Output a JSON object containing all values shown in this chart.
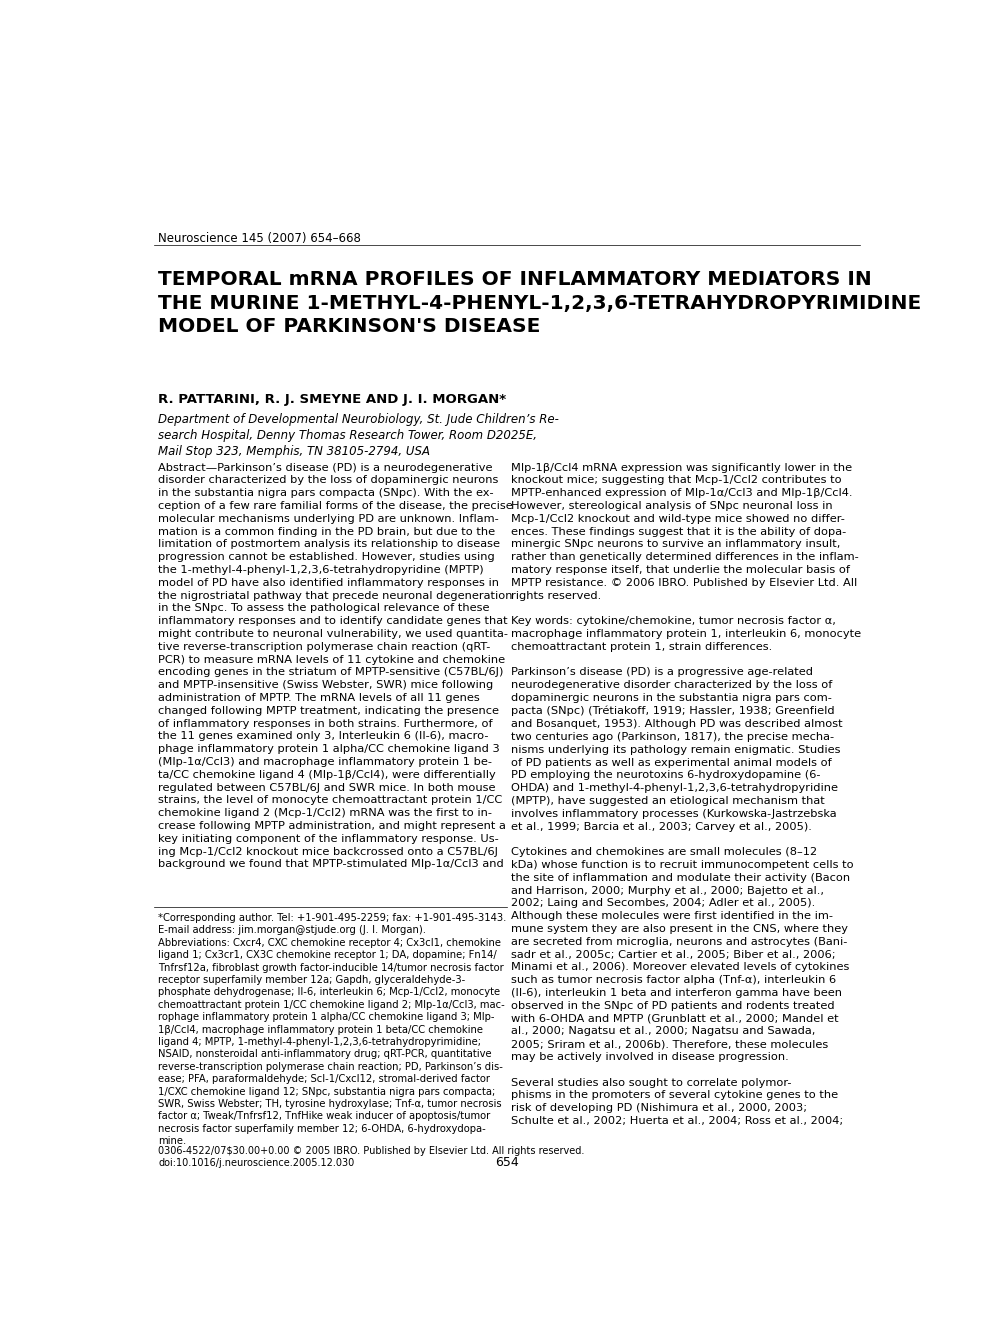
{
  "background_color": "#ffffff",
  "journal_ref": "Neuroscience 145 (2007) 654–668",
  "journal_ref_fontsize": 8.5,
  "title": "TEMPORAL mRNA PROFILES OF INFLAMMATORY MEDIATORS IN\nTHE MURINE 1-METHYL-4-PHENYL-1,2,3,6-TETRAHYDROPYRIMIDINE\nMODEL OF PARKINSON'S DISEASE",
  "title_fontsize": 14.5,
  "authors": "R. PATTARINI, R. J. SMEYNE AND J. I. MORGAN*",
  "authors_fontsize": 9.5,
  "affiliation": "Department of Developmental Neurobiology, St. Jude Children’s Re-\nsearch Hospital, Denny Thomas Research Tower, Room D2025E,\nMail Stop 323, Memphis, TN 38105-2794, USA",
  "affiliation_fontsize": 8.5,
  "abstract_text_left": "Abstract—Parkinson’s disease (PD) is a neurodegenerative\ndisorder characterized by the loss of dopaminergic neurons\nin the substantia nigra pars compacta (SNpc). With the ex-\nception of a few rare familial forms of the disease, the precise\nmolecular mechanisms underlying PD are unknown. Inflam-\nmation is a common finding in the PD brain, but due to the\nlimitation of postmortem analysis its relationship to disease\nprogression cannot be established. However, studies using\nthe 1-methyl-4-phenyl-1,2,3,6-tetrahydropyridine (MPTP)\nmodel of PD have also identified inflammatory responses in\nthe nigrostriatal pathway that precede neuronal degeneration\nin the SNpc. To assess the pathological relevance of these\ninflammatory responses and to identify candidate genes that\nmight contribute to neuronal vulnerability, we used quantita-\ntive reverse-transcription polymerase chain reaction (qRT-\nPCR) to measure mRNA levels of 11 cytokine and chemokine\nencoding genes in the striatum of MPTP-sensitive (C57BL/6J)\nand MPTP-insensitive (Swiss Webster, SWR) mice following\nadministration of MPTP. The mRNA levels of all 11 genes\nchanged following MPTP treatment, indicating the presence\nof inflammatory responses in both strains. Furthermore, of\nthe 11 genes examined only 3, Interleukin 6 (Il-6), macro-\nphage inflammatory protein 1 alpha/CC chemokine ligand 3\n(Mlp-1α/Ccl3) and macrophage inflammatory protein 1 be-\nta/CC chemokine ligand 4 (Mlp-1β/Ccl4), were differentially\nregulated between C57BL/6J and SWR mice. In both mouse\nstrains, the level of monocyte chemoattractant protein 1/CC\nchemokine ligand 2 (Mcp-1/Ccl2) mRNA was the first to in-\ncrease following MPTP administration, and might represent a\nkey initiating component of the inflammatory response. Us-\ning Mcp-1/Ccl2 knockout mice backcrossed onto a C57BL/6J\nbackground we found that MPTP-stimulated Mlp-1α/Ccl3 and",
  "abstract_text_right": "Mlp-1β/Ccl4 mRNA expression was significantly lower in the\nknockout mice; suggesting that Mcp-1/Ccl2 contributes to\nMPTP-enhanced expression of Mlp-1α/Ccl3 and Mlp-1β/Ccl4.\nHowever, stereological analysis of SNpc neuronal loss in\nMcp-1/Ccl2 knockout and wild-type mice showed no differ-\nences. These findings suggest that it is the ability of dopa-\nminergic SNpc neurons to survive an inflammatory insult,\nrather than genetically determined differences in the inflam-\nmatory response itself, that underlie the molecular basis of\nMPTP resistance. © 2006 IBRO. Published by Elsevier Ltd. All\nrights reserved.\n\nKey words: cytokine/chemokine, tumor necrosis factor α,\nmacrophage inflammatory protein 1, interleukin 6, monocyte\nchemoattractant protein 1, strain differences.\n\nParkinson’s disease (PD) is a progressive age-related\nneurodegenerative disorder characterized by the loss of\ndopaminergic neurons in the substantia nigra pars com-\npacta (SNpc) (Trétiakoff, 1919; Hassler, 1938; Greenfield\nand Bosanquet, 1953). Although PD was described almost\ntwo centuries ago (Parkinson, 1817), the precise mecha-\nnisms underlying its pathology remain enigmatic. Studies\nof PD patients as well as experimental animal models of\nPD employing the neurotoxins 6-hydroxydopamine (6-\nOHDA) and 1-methyl-4-phenyl-1,2,3,6-tetrahydropyridine\n(MPTP), have suggested an etiological mechanism that\ninvolves inflammatory processes (Kurkowska-Jastrzebska\net al., 1999; Barcia et al., 2003; Carvey et al., 2005).\n\nCytokines and chemokines are small molecules (8–12\nkDa) whose function is to recruit immunocompetent cells to\nthe site of inflammation and modulate their activity (Bacon\nand Harrison, 2000; Murphy et al., 2000; Bajetto et al.,\n2002; Laing and Secombes, 2004; Adler et al., 2005).\nAlthough these molecules were first identified in the im-\nmune system they are also present in the CNS, where they\nare secreted from microglia, neurons and astrocytes (Bani-\nsadr et al., 2005c; Cartier et al., 2005; Biber et al., 2006;\nMinami et al., 2006). Moreover elevated levels of cytokines\nsuch as tumor necrosis factor alpha (Tnf-α), interleukin 6\n(Il-6), interleukin 1 beta and interferon gamma have been\nobserved in the SNpc of PD patients and rodents treated\nwith 6-OHDA and MPTP (Grunblatt et al., 2000; Mandel et\nal., 2000; Nagatsu et al., 2000; Nagatsu and Sawada,\n2005; Sriram et al., 2006b). Therefore, these molecules\nmay be actively involved in disease progression.\n\nSeveral studies also sought to correlate polymor-\nphisms in the promoters of several cytokine genes to the\nrisk of developing PD (Nishimura et al., 2000, 2003;\nSchulte et al., 2002; Huerta et al., 2004; Ross et al., 2004;",
  "footnote_text": "*Corresponding author. Tel: +1-901-495-2259; fax: +1-901-495-3143.\nE-mail address: jim.morgan@stjude.org (J. I. Morgan).\nAbbreviations: Cxcr4, CXC chemokine receptor 4; Cx3cl1, chemokine\nligand 1; Cx3cr1, CX3C chemokine receptor 1; DA, dopamine; Fn14/\nTnfrsf12a, fibroblast growth factor-inducible 14/tumor necrosis factor\nreceptor superfamily member 12a; Gapdh, glyceraldehyde-3-\nphosphate dehydrogenase; Il-6, interleukin 6; Mcp-1/Ccl2, monocyte\nchemoattractant protein 1/CC chemokine ligand 2; Mlp-1α/Ccl3, mac-\nrophage inflammatory protein 1 alpha/CC chemokine ligand 3; Mlp-\n1β/Ccl4, macrophage inflammatory protein 1 beta/CC chemokine\nligand 4; MPTP, 1-methyl-4-phenyl-1,2,3,6-tetrahydropyrimidine;\nNSAID, nonsteroidal anti-inflammatory drug; qRT-PCR, quantitative\nreverse-transcription polymerase chain reaction; PD, Parkinson’s dis-\nease; PFA, paraformaldehyde; Scl-1/Cxcl12, stromal-derived factor\n1/CXC chemokine ligand 12; SNpc, substantia nigra pars compacta;\nSWR, Swiss Webster; TH, tyrosine hydroxylase; Tnf-α, tumor necrosis\nfactor α; Tweak/Tnfrsf12, TnfHike weak inducer of apoptosis/tumor\nnecrosis factor superfamily member 12; 6-OHDA, 6-hydroxydopa-\nmine.",
  "copyright_text": "0306-4522/07$30.00+0.00 © 2005 IBRO. Published by Elsevier Ltd. All rights reserved.\ndoi:10.1016/j.neuroscience.2005.12.030",
  "page_number": "654",
  "body_fontsize": 8.2,
  "footnote_fontsize": 7.2,
  "copyright_fontsize": 7.0
}
